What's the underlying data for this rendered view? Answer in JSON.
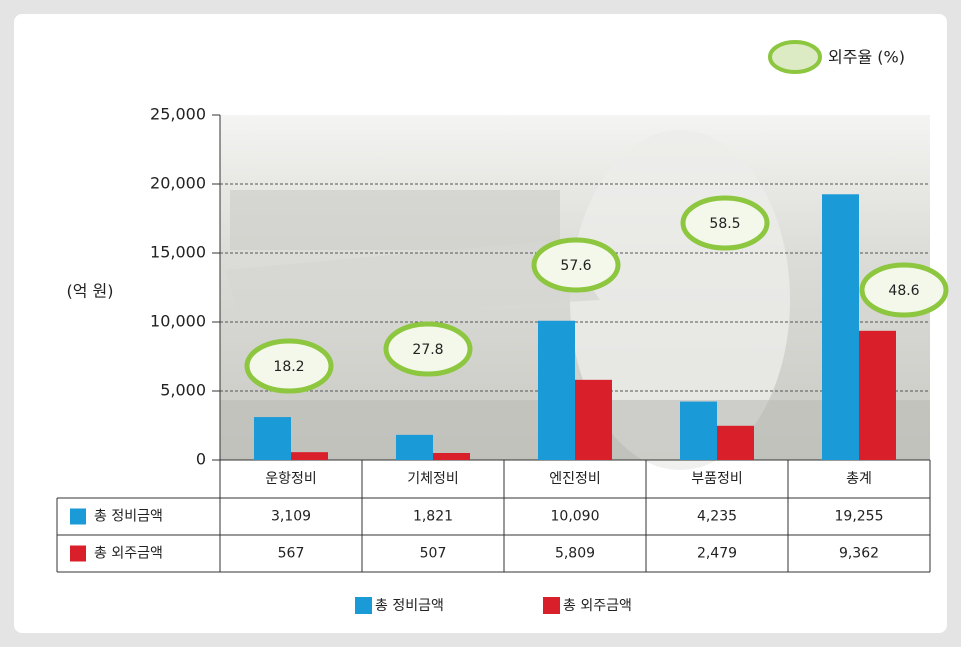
{
  "chart_data": {
    "type": "bar",
    "y_label": "(억 원)",
    "categories": [
      "운항정비",
      "기체정비",
      "엔진정비",
      "부품정비",
      "총계"
    ],
    "series": [
      {
        "name": "총 정비금액",
        "color": "#1a9ad6",
        "values": [
          3109,
          1821,
          10090,
          4235,
          19255
        ],
        "value_labels": [
          "3,109",
          "1,821",
          "10,090",
          "4,235",
          "19,255"
        ]
      },
      {
        "name": "총 외주금액",
        "color": "#d9202a",
        "values": [
          567,
          507,
          5809,
          2479,
          9362
        ],
        "value_labels": [
          "567",
          "507",
          "5,809",
          "2,479",
          "9,362"
        ]
      }
    ],
    "outsourcing_rate": {
      "name": "외주율 (%)",
      "color": "#8dc63f",
      "values": [
        18.2,
        27.8,
        57.6,
        58.5,
        48.6
      ]
    },
    "ylim": [
      0,
      25000
    ],
    "yticks": [
      0,
      {
        "value": 5000,
        "label": "5,000"
      },
      {
        "value": 10000,
        "label": "10,000"
      },
      {
        "value": 15000,
        "label": "15,000"
      },
      {
        "value": 20000,
        "label": "20,000"
      },
      {
        "value": 25000,
        "label": "25,000"
      }
    ],
    "grid": true
  }
}
